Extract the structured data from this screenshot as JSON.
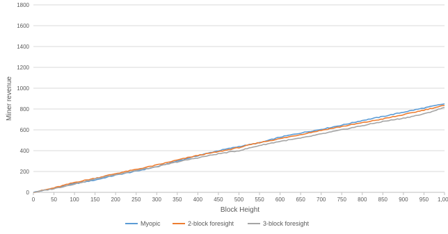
{
  "chart_data": {
    "type": "line",
    "title": "",
    "xlabel": "Block Height",
    "ylabel": "Miner revenue",
    "xlim": [
      0,
      1000
    ],
    "ylim": [
      0,
      1800
    ],
    "x_ticks": [
      "0",
      "50",
      "100",
      "150",
      "200",
      "250",
      "300",
      "350",
      "400",
      "450",
      "500",
      "550",
      "600",
      "650",
      "700",
      "750",
      "800",
      "850",
      "900",
      "950",
      "1,000"
    ],
    "y_ticks": [
      "0",
      "200",
      "400",
      "600",
      "800",
      "1000",
      "1200",
      "1400",
      "1600",
      "1800"
    ],
    "grid": "horizontal",
    "legend_position": "bottom",
    "x": [
      0,
      50,
      100,
      150,
      200,
      250,
      300,
      350,
      400,
      450,
      500,
      550,
      600,
      650,
      700,
      750,
      800,
      850,
      900,
      950,
      1000
    ],
    "series": [
      {
        "name": "Myopic",
        "color": "#5B9BD5",
        "values": [
          0,
          38,
          82,
          118,
          165,
          203,
          246,
          300,
          352,
          400,
          440,
          475,
          530,
          570,
          605,
          645,
          690,
          728,
          770,
          810,
          850
        ]
      },
      {
        "name": "2-block foresight",
        "color": "#ED7D31",
        "values": [
          0,
          42,
          95,
          135,
          180,
          220,
          262,
          310,
          355,
          390,
          430,
          478,
          515,
          555,
          595,
          632,
          668,
          705,
          745,
          790,
          835
        ]
      },
      {
        "name": "3-block foresight",
        "color": "#A5A5A5",
        "values": [
          0,
          35,
          80,
          128,
          170,
          210,
          245,
          292,
          332,
          370,
          400,
          450,
          490,
          520,
          560,
          600,
          640,
          680,
          712,
          752,
          815
        ]
      }
    ]
  }
}
